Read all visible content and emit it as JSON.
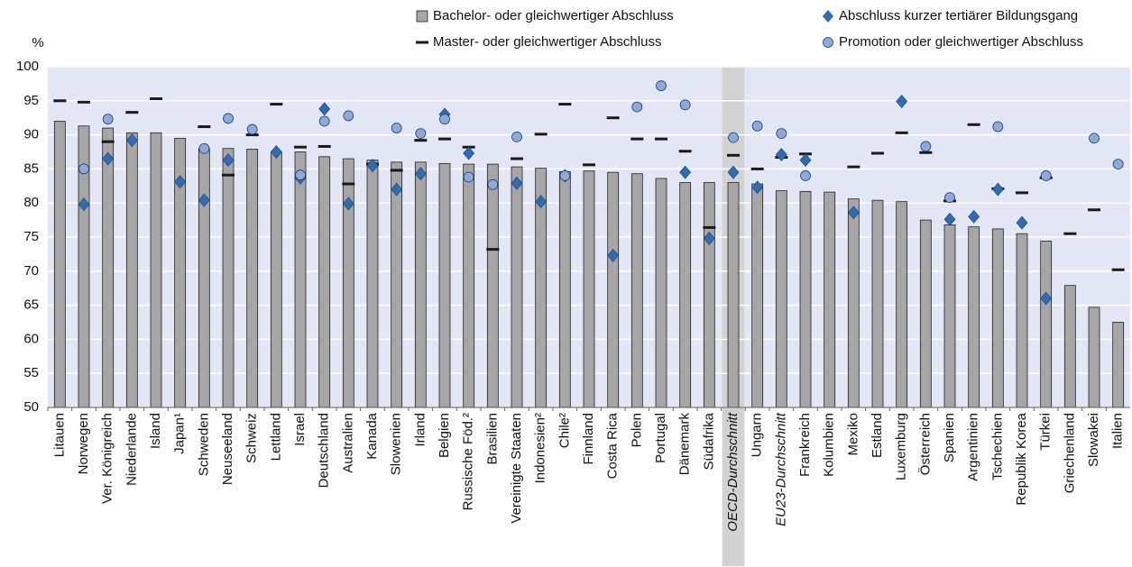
{
  "chart_data": {
    "type": "bar",
    "y_label": "%",
    "categories": [
      "Litauen",
      "Norwegen",
      "Ver. Königreich",
      "Niederlande",
      "Island",
      "Japan¹",
      "Schweden",
      "Neuseeland",
      "Schweiz",
      "Lettland",
      "Israel",
      "Deutschland",
      "Australien",
      "Kanada",
      "Slowenien",
      "Irland",
      "Belgien",
      "Russische Föd.²",
      "Brasilien",
      "Vereinigte Staaten",
      "Indonesien²",
      "Chile²",
      "Finnland",
      "Costa Rica",
      "Polen",
      "Portugal",
      "Dänemark",
      "Südafrika",
      "OECD-Durchschnitt",
      "Ungarn",
      "EU23-Durchschnitt",
      "Frankreich",
      "Kolumbien",
      "Mexiko",
      "Estland",
      "Luxemburg",
      "Österreich",
      "Spanien",
      "Argentinien",
      "Tschechien",
      "Republik Korea",
      "Türkei",
      "Griechenland",
      "Slowakei",
      "Italien"
    ],
    "highlight_categories": [
      28
    ],
    "italic_categories": [
      28,
      30
    ],
    "series": [
      {
        "name": "Bachelor- oder gleichwertiger Abschluss",
        "marker": "bar",
        "color": "#a6a6a6",
        "values": [
          92,
          91.3,
          91,
          90.3,
          90.3,
          89.5,
          88,
          88,
          87.9,
          87.5,
          87.5,
          86.8,
          86.5,
          86.3,
          86,
          86,
          85.8,
          85.7,
          85.7,
          85.3,
          85.1,
          84.6,
          84.7,
          84.5,
          84.3,
          83.6,
          83,
          83,
          83,
          82.8,
          81.8,
          81.7,
          81.6,
          80.6,
          80.4,
          80.2,
          77.5,
          76.8,
          76.5,
          76.2,
          75.5,
          74.4,
          67.9,
          64.7,
          62.5
        ]
      },
      {
        "name": "Master- oder gleichwertiger Abschluss",
        "marker": "dash",
        "color": "#1a1a1a",
        "values": [
          95,
          94.8,
          89,
          93.3,
          95.3,
          null,
          91.2,
          84.1,
          90,
          94.5,
          88.2,
          88.3,
          82.8,
          85.7,
          84.8,
          89.2,
          89.4,
          88.2,
          73.2,
          86.5,
          90.1,
          94.5,
          85.6,
          92.5,
          89.4,
          89.4,
          87.6,
          76.4,
          87,
          85,
          86.7,
          87.2,
          null,
          85.3,
          87.3,
          90.3,
          87.4,
          80.3,
          91.5,
          82.1,
          81.5,
          83.7,
          75.5,
          79,
          70.2
        ]
      },
      {
        "name": "Abschluss kurzer tertiärer Bildungsgang",
        "marker": "diamond",
        "color": "#2e6db4",
        "values": [
          null,
          79.8,
          86.5,
          89.2,
          null,
          83.1,
          80.4,
          86.3,
          null,
          87.5,
          83.7,
          93.8,
          79.9,
          85.5,
          82,
          84.3,
          93,
          87.3,
          null,
          82.9,
          80.2,
          84,
          null,
          72.3,
          null,
          null,
          84.5,
          74.8,
          84.5,
          82.3,
          87.1,
          86.3,
          null,
          78.6,
          null,
          94.9,
          null,
          77.6,
          78,
          82,
          77.1,
          66,
          null,
          null,
          null
        ]
      },
      {
        "name": "Promotion oder gleichwertiger Abschluss",
        "marker": "circle",
        "color": "#8eaadc",
        "values": [
          null,
          85,
          92.3,
          null,
          null,
          null,
          88,
          92.4,
          90.8,
          null,
          84.1,
          92,
          92.8,
          null,
          91,
          90.2,
          92.3,
          83.8,
          82.7,
          89.7,
          null,
          84,
          null,
          null,
          94.1,
          97.2,
          94.4,
          null,
          89.6,
          91.3,
          90.2,
          84,
          null,
          null,
          null,
          null,
          88.3,
          80.8,
          null,
          91.2,
          null,
          84,
          null,
          89.5,
          85.7
        ]
      }
    ],
    "ylim": [
      50,
      100
    ],
    "yticks": [
      50,
      55,
      60,
      65,
      70,
      75,
      80,
      85,
      90,
      95,
      100
    ],
    "grid": true
  }
}
